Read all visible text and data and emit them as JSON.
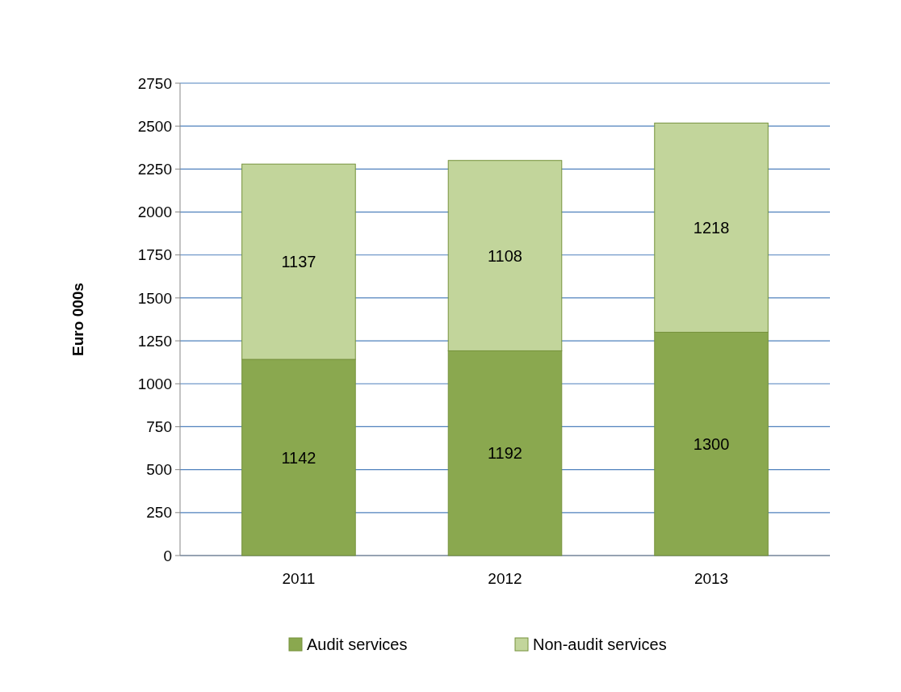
{
  "chart_data": {
    "type": "bar",
    "stacked": true,
    "ylabel": "Euro 000s",
    "categories": [
      "2011",
      "2012",
      "2013"
    ],
    "series": [
      {
        "name": "Audit services",
        "color": "#8aa84f",
        "values": [
          1142,
          1192,
          1300
        ]
      },
      {
        "name": "Non-audit services",
        "color": "#c2d59b",
        "values": [
          1137,
          1108,
          1218
        ]
      }
    ],
    "ylim": [
      0,
      2750
    ],
    "yticks": [
      0,
      250,
      500,
      750,
      1000,
      1250,
      1500,
      1750,
      2000,
      2250,
      2500,
      2750
    ],
    "grid": "y",
    "legend": "bottom",
    "data_labels": true
  }
}
